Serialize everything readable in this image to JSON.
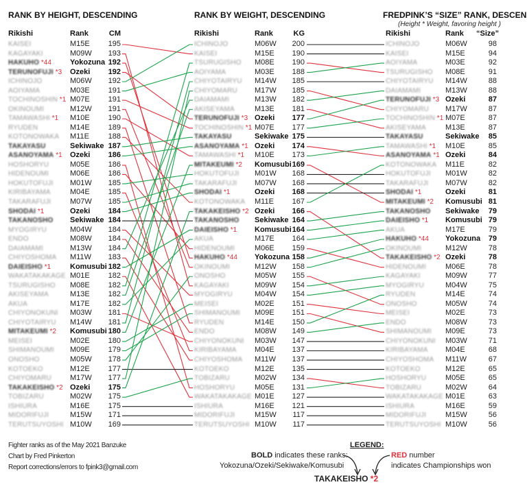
{
  "chart_data": {
    "type": "table",
    "colors": {
      "up": "#1aa34a",
      "down": "#e0303a",
      "same": "#222222"
    },
    "bold_ranks": [
      "Yokozuna",
      "Ozeki",
      "Sekiwake",
      "Komusubi"
    ],
    "panels": [
      {
        "title": "RANK BY HEIGHT, DESCENDING",
        "subtitle": "",
        "headers": [
          "Rikishi",
          "Rank",
          "CM"
        ],
        "rows": [
          [
            "KAISEI",
            "M15E",
            195,
            ""
          ],
          [
            "KAGAYAKI",
            "M09W",
            193,
            ""
          ],
          [
            "HAKUHO",
            "Yokozuna",
            192,
            "*44"
          ],
          [
            "TERUNOFUJI",
            "Ozeki",
            192,
            "*3"
          ],
          [
            "ICHINOJO",
            "M06W",
            192,
            ""
          ],
          [
            "AOIYAMA",
            "M03E",
            191,
            ""
          ],
          [
            "TOCHINOSHIN",
            "M07E",
            191,
            "*1"
          ],
          [
            "OKINOUMI",
            "M12W",
            191,
            ""
          ],
          [
            "TAMAWASHI",
            "M10E",
            190,
            "*1"
          ],
          [
            "RYUDEN",
            "M14E",
            189,
            ""
          ],
          [
            "KOTONOWAKA",
            "M11E",
            188,
            ""
          ],
          [
            "TAKAYASU",
            "Sekiwake",
            187,
            ""
          ],
          [
            "ASANOYAMA",
            "Ozeki",
            186,
            "*1"
          ],
          [
            "HOSHORYU",
            "M05E",
            186,
            ""
          ],
          [
            "HIDENOUMI",
            "M06E",
            186,
            ""
          ],
          [
            "HOKUTOFUJI",
            "M01W",
            185,
            ""
          ],
          [
            "KIRIBAYAMA",
            "M04E",
            185,
            ""
          ],
          [
            "TAKARAFUJI",
            "M07W",
            185,
            ""
          ],
          [
            "SHODAI",
            "Ozeki",
            184,
            "*1"
          ],
          [
            "TAKANOSHO",
            "Sekiwake",
            184,
            ""
          ],
          [
            "MYOGIRYU",
            "M04W",
            184,
            ""
          ],
          [
            "ENDO",
            "M08W",
            184,
            ""
          ],
          [
            "DAIAMAMI",
            "M13W",
            184,
            ""
          ],
          [
            "CHIYOSHOMA",
            "M11W",
            183,
            ""
          ],
          [
            "DAIEISHO",
            "Komusubi",
            182,
            "*1"
          ],
          [
            "WAKATAKAKAGE",
            "M01E",
            182,
            ""
          ],
          [
            "TSURUGISHO",
            "M08E",
            182,
            ""
          ],
          [
            "AKISEYAMA",
            "M13E",
            182,
            ""
          ],
          [
            "AKUA",
            "M17E",
            182,
            ""
          ],
          [
            "CHIYONOKUNI",
            "M03W",
            181,
            ""
          ],
          [
            "CHIYOTAIRYU",
            "M14W",
            181,
            ""
          ],
          [
            "MITAKEUMI",
            "Komusubi",
            180,
            "*2"
          ],
          [
            "MEISEI",
            "M02E",
            180,
            ""
          ],
          [
            "SHIMANOUMI",
            "M09E",
            179,
            ""
          ],
          [
            "ONOSHO",
            "M05W",
            178,
            ""
          ],
          [
            "KOTOEKO",
            "M12E",
            177,
            ""
          ],
          [
            "CHIYOMARU",
            "M17W",
            177,
            ""
          ],
          [
            "TAKAKEISHO",
            "Ozeki",
            175,
            "*2"
          ],
          [
            "TOBIZARU",
            "M02W",
            175,
            ""
          ],
          [
            "ISHIURA",
            "M16E",
            175,
            ""
          ],
          [
            "MIDORIFUJI",
            "M15W",
            171,
            ""
          ],
          [
            "TERUTSUYOSHI",
            "M10W",
            169,
            ""
          ]
        ]
      },
      {
        "title": "RANK BY WEIGHT, DESCENDING",
        "subtitle": "",
        "headers": [
          "Rikishi",
          "Rank",
          "KG"
        ],
        "rows": [
          [
            "ICHINOJO",
            "M06W",
            200,
            ""
          ],
          [
            "KAISEI",
            "M15E",
            190,
            ""
          ],
          [
            "TSURUGISHO",
            "M08E",
            190,
            ""
          ],
          [
            "AOIYAMA",
            "M03E",
            188,
            ""
          ],
          [
            "CHIYOTAIRYU",
            "M14W",
            185,
            ""
          ],
          [
            "CHIYOMARU",
            "M17W",
            185,
            ""
          ],
          [
            "DAIAMAMI",
            "M13W",
            182,
            ""
          ],
          [
            "AKISEYAMA",
            "M13E",
            181,
            ""
          ],
          [
            "TERUNOFUJI",
            "Ozeki",
            177,
            "*3"
          ],
          [
            "TOCHINOSHIN",
            "M07E",
            177,
            "*1"
          ],
          [
            "TAKAYASU",
            "Sekiwake",
            175,
            ""
          ],
          [
            "ASANOYAMA",
            "Ozeki",
            174,
            "*1"
          ],
          [
            "TAMAWASHI",
            "M10E",
            173,
            "*1"
          ],
          [
            "MITAKEUMI",
            "Komusubi",
            169,
            "*2"
          ],
          [
            "HOKUTOFUJI",
            "M01W",
            168,
            ""
          ],
          [
            "TAKARAFUJI",
            "M07W",
            168,
            ""
          ],
          [
            "SHODAI",
            "Ozeki",
            168,
            "*1"
          ],
          [
            "KOTONOWAKA",
            "M11E",
            167,
            ""
          ],
          [
            "TAKAKEISHO",
            "Ozeki",
            166,
            "*2"
          ],
          [
            "TAKANOSHO",
            "Sekiwake",
            164,
            ""
          ],
          [
            "DAIEISHO",
            "Komusubi",
            164,
            "*1"
          ],
          [
            "AKUA",
            "M17E",
            164,
            ""
          ],
          [
            "HIDENOUMI",
            "M06E",
            159,
            ""
          ],
          [
            "HAKUHO",
            "Yokozuna",
            158,
            "*44"
          ],
          [
            "OKINOUMI",
            "M12W",
            158,
            ""
          ],
          [
            "ONOSHO",
            "M05W",
            155,
            ""
          ],
          [
            "KAGAYAKI",
            "M09W",
            154,
            ""
          ],
          [
            "MYOGIRYU",
            "M04W",
            154,
            ""
          ],
          [
            "MEISEI",
            "M02E",
            151,
            ""
          ],
          [
            "SHIMANOUMI",
            "M09E",
            151,
            ""
          ],
          [
            "RYUDEN",
            "M14E",
            150,
            ""
          ],
          [
            "ENDO",
            "M08W",
            149,
            ""
          ],
          [
            "CHIYONOKUNI",
            "M03W",
            147,
            ""
          ],
          [
            "KIRIBAYAMA",
            "M04E",
            137,
            ""
          ],
          [
            "CHIYOSHOMA",
            "M11W",
            137,
            ""
          ],
          [
            "KOTOEKO",
            "M12E",
            135,
            ""
          ],
          [
            "TOBIZARU",
            "M02W",
            134,
            ""
          ],
          [
            "HOSHORYU",
            "M05E",
            131,
            ""
          ],
          [
            "WAKATAKAKAGE",
            "M01E",
            127,
            ""
          ],
          [
            "ISHIURA",
            "M16E",
            121,
            ""
          ],
          [
            "MIDORIFUJI",
            "M15W",
            117,
            ""
          ],
          [
            "TERUTSUYOSHI",
            "M10W",
            117,
            ""
          ]
        ]
      },
      {
        "title": "FREDPINK’S “SIZE” RANK, DESCENDING",
        "subtitle": "(Height * Weight, favoring height )",
        "headers": [
          "Rikishi",
          "Rank",
          "“Size”"
        ],
        "rows": [
          [
            "ICHINOJO",
            "M06W",
            98,
            ""
          ],
          [
            "KAISEI",
            "M15E",
            94,
            ""
          ],
          [
            "AOIYAMA",
            "M03E",
            92,
            ""
          ],
          [
            "TSURUGISHO",
            "M08E",
            91,
            ""
          ],
          [
            "CHIYOTAIRYU",
            "M14W",
            88,
            ""
          ],
          [
            "DAIAMAMI",
            "M13W",
            88,
            ""
          ],
          [
            "TERUNOFUJI",
            "Ozeki",
            87,
            "*3"
          ],
          [
            "CHIYOMARU",
            "M17W",
            87,
            ""
          ],
          [
            "TOCHINOSHIN",
            "M07E",
            87,
            "*1"
          ],
          [
            "AKISEYAMA",
            "M13E",
            87,
            ""
          ],
          [
            "TAKAYASU",
            "Sekiwake",
            85,
            ""
          ],
          [
            "TAMAWASHI",
            "M10E",
            85,
            "*1"
          ],
          [
            "ASANOYAMA",
            "Ozeki",
            84,
            "*1"
          ],
          [
            "KOTONOWAKA",
            "M11E",
            82,
            ""
          ],
          [
            "HOKUTOFUJI",
            "M01W",
            82,
            ""
          ],
          [
            "TAKARAFUJI",
            "M07W",
            82,
            ""
          ],
          [
            "SHODAI",
            "Ozeki",
            81,
            "*1"
          ],
          [
            "MITAKEUMI",
            "Komusubi",
            81,
            "*2"
          ],
          [
            "TAKANOSHO",
            "Sekiwake",
            79,
            ""
          ],
          [
            "DAIEISHO",
            "Komusubi",
            79,
            "*1"
          ],
          [
            "AKUA",
            "M17E",
            79,
            ""
          ],
          [
            "HAKUHO",
            "Yokozuna",
            79,
            "*44"
          ],
          [
            "OKINOUMI",
            "M12W",
            78,
            ""
          ],
          [
            "TAKAKEISHO",
            "Ozeki",
            78,
            "*2"
          ],
          [
            "HIDENOUMI",
            "M06E",
            78,
            ""
          ],
          [
            "KAGAYAKI",
            "M09W",
            77,
            ""
          ],
          [
            "MYOGIRYU",
            "M04W",
            75,
            ""
          ],
          [
            "RYUDEN",
            "M14E",
            74,
            ""
          ],
          [
            "ONOSHO",
            "M05W",
            74,
            ""
          ],
          [
            "MEISEI",
            "M02E",
            73,
            ""
          ],
          [
            "ENDO",
            "M08W",
            73,
            ""
          ],
          [
            "SHIMANOUMI",
            "M09E",
            73,
            ""
          ],
          [
            "CHIYONOKUNI",
            "M03W",
            71,
            ""
          ],
          [
            "KIRIBAYAMA",
            "M04E",
            68,
            ""
          ],
          [
            "CHIYOSHOMA",
            "M11W",
            67,
            ""
          ],
          [
            "KOTOEKO",
            "M12E",
            65,
            ""
          ],
          [
            "HOSHORYU",
            "M05E",
            65,
            ""
          ],
          [
            "TOBIZARU",
            "M02W",
            64,
            ""
          ],
          [
            "WAKATAKAKAGE",
            "M01E",
            63,
            ""
          ],
          [
            "ISHIURA",
            "M16E",
            59,
            ""
          ],
          [
            "MIDORIFUJI",
            "M15W",
            56,
            ""
          ],
          [
            "TERUTSUYOSHI",
            "M10W",
            56,
            ""
          ]
        ]
      }
    ]
  },
  "footer": {
    "line1": "Fighter ranks as of the May 2021 Banzuke",
    "line2": "Chart by Fred Pinkerton",
    "line3": "Report corrections/errors to fpink3@gmail.com"
  },
  "legend": {
    "title": "LEGEND:",
    "bold_word": "BOLD",
    "bold_text": " indicates these ranks:",
    "bold_ranks": "Yokozuna/Ozeki/Sekiwake/Komusubi",
    "red_word": "RED",
    "red_text": " number",
    "red_text2": "indicates Championships won",
    "example_name": "TAKAKEISHO",
    "example_champ": "*2"
  }
}
